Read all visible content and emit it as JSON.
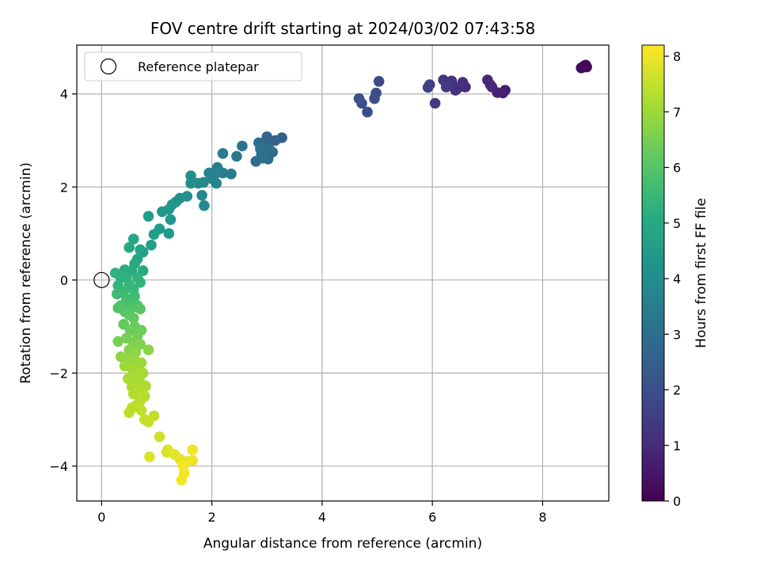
{
  "chart_data": {
    "type": "scatter",
    "title": "FOV centre drift starting at 2024/03/02 07:43:58",
    "xlabel": "Angular distance from reference (arcmin)",
    "ylabel": "Rotation from reference (arcmin)",
    "xlim": [
      -0.45,
      9.2
    ],
    "ylim": [
      -4.75,
      5.05
    ],
    "xticks": [
      0,
      2,
      4,
      6,
      8
    ],
    "yticks": [
      -4,
      -2,
      0,
      2,
      4
    ],
    "xtick_labels": [
      "0",
      "2",
      "4",
      "6",
      "8"
    ],
    "ytick_labels": [
      "−4",
      "−2",
      "0",
      "2",
      "4"
    ],
    "grid": true,
    "legend": {
      "placement": "upper-left",
      "label": "Reference platepar"
    },
    "reference_point": {
      "x": 0,
      "y": 0
    },
    "colorbar": {
      "label": "Hours from first FF file",
      "min": 0,
      "max": 8.2,
      "ticks": [
        0,
        1,
        2,
        3,
        4,
        5,
        6,
        7,
        8
      ],
      "tick_labels": [
        "0",
        "1",
        "2",
        "3",
        "4",
        "5",
        "6",
        "7",
        "8"
      ],
      "colormap": "viridis"
    },
    "points": [
      {
        "x": 8.72,
        "y": 4.57,
        "h": 0.05
      },
      {
        "x": 8.78,
        "y": 4.62,
        "h": 0.1
      },
      {
        "x": 8.8,
        "y": 4.58,
        "h": 0.12
      },
      {
        "x": 8.75,
        "y": 4.6,
        "h": 0.15
      },
      {
        "x": 8.7,
        "y": 4.56,
        "h": 0.2
      },
      {
        "x": 7.32,
        "y": 4.08,
        "h": 0.7
      },
      {
        "x": 7.28,
        "y": 4.02,
        "h": 0.75
      },
      {
        "x": 7.18,
        "y": 4.03,
        "h": 0.8
      },
      {
        "x": 7.08,
        "y": 4.15,
        "h": 0.85
      },
      {
        "x": 7.0,
        "y": 4.3,
        "h": 0.9
      },
      {
        "x": 7.05,
        "y": 4.2,
        "h": 0.95
      },
      {
        "x": 6.6,
        "y": 4.15,
        "h": 1.05
      },
      {
        "x": 6.55,
        "y": 4.25,
        "h": 1.1
      },
      {
        "x": 6.48,
        "y": 4.14,
        "h": 1.15
      },
      {
        "x": 6.42,
        "y": 4.08,
        "h": 1.2
      },
      {
        "x": 6.35,
        "y": 4.28,
        "h": 1.25
      },
      {
        "x": 6.3,
        "y": 4.2,
        "h": 1.3
      },
      {
        "x": 6.2,
        "y": 4.3,
        "h": 1.35
      },
      {
        "x": 6.25,
        "y": 4.15,
        "h": 1.4
      },
      {
        "x": 6.05,
        "y": 3.8,
        "h": 1.45
      },
      {
        "x": 5.95,
        "y": 4.2,
        "h": 1.5
      },
      {
        "x": 5.92,
        "y": 4.14,
        "h": 1.55
      },
      {
        "x": 5.03,
        "y": 4.27,
        "h": 1.8
      },
      {
        "x": 4.98,
        "y": 4.02,
        "h": 1.85
      },
      {
        "x": 4.95,
        "y": 3.9,
        "h": 1.9
      },
      {
        "x": 4.82,
        "y": 3.61,
        "h": 1.95
      },
      {
        "x": 4.72,
        "y": 3.8,
        "h": 2.0
      },
      {
        "x": 4.67,
        "y": 3.9,
        "h": 2.05
      },
      {
        "x": 3.27,
        "y": 3.06,
        "h": 2.5
      },
      {
        "x": 3.15,
        "y": 3.0,
        "h": 2.55
      },
      {
        "x": 3.05,
        "y": 2.98,
        "h": 2.6
      },
      {
        "x": 3.0,
        "y": 3.08,
        "h": 2.65
      },
      {
        "x": 2.95,
        "y": 2.9,
        "h": 2.7
      },
      {
        "x": 3.1,
        "y": 2.75,
        "h": 2.75
      },
      {
        "x": 3.02,
        "y": 2.6,
        "h": 2.8
      },
      {
        "x": 2.9,
        "y": 2.7,
        "h": 2.85
      },
      {
        "x": 2.85,
        "y": 2.95,
        "h": 2.9
      },
      {
        "x": 2.8,
        "y": 2.55,
        "h": 2.95
      },
      {
        "x": 2.92,
        "y": 2.62,
        "h": 3.0
      },
      {
        "x": 3.05,
        "y": 2.8,
        "h": 3.05
      },
      {
        "x": 2.88,
        "y": 2.82,
        "h": 3.1
      },
      {
        "x": 2.55,
        "y": 2.88,
        "h": 3.2
      },
      {
        "x": 2.45,
        "y": 2.66,
        "h": 3.3
      },
      {
        "x": 2.2,
        "y": 2.72,
        "h": 3.4
      },
      {
        "x": 2.35,
        "y": 2.28,
        "h": 3.45
      },
      {
        "x": 2.2,
        "y": 2.3,
        "h": 3.5
      },
      {
        "x": 2.1,
        "y": 2.42,
        "h": 3.55
      },
      {
        "x": 2.08,
        "y": 2.3,
        "h": 3.6
      },
      {
        "x": 1.95,
        "y": 2.3,
        "h": 3.65
      },
      {
        "x": 2.0,
        "y": 2.18,
        "h": 3.7
      },
      {
        "x": 2.08,
        "y": 2.08,
        "h": 3.75
      },
      {
        "x": 1.85,
        "y": 2.1,
        "h": 3.8
      },
      {
        "x": 1.82,
        "y": 1.82,
        "h": 3.85
      },
      {
        "x": 1.86,
        "y": 1.6,
        "h": 3.9
      },
      {
        "x": 1.75,
        "y": 2.08,
        "h": 3.95
      },
      {
        "x": 1.62,
        "y": 2.08,
        "h": 4.0
      },
      {
        "x": 1.62,
        "y": 2.24,
        "h": 4.05
      },
      {
        "x": 1.55,
        "y": 1.8,
        "h": 4.1
      },
      {
        "x": 1.42,
        "y": 1.76,
        "h": 4.15
      },
      {
        "x": 1.35,
        "y": 1.68,
        "h": 4.2
      },
      {
        "x": 1.28,
        "y": 1.62,
        "h": 4.25
      },
      {
        "x": 1.22,
        "y": 1.52,
        "h": 4.3
      },
      {
        "x": 1.1,
        "y": 1.47,
        "h": 4.35
      },
      {
        "x": 1.25,
        "y": 1.3,
        "h": 4.4
      },
      {
        "x": 1.22,
        "y": 1.0,
        "h": 4.45
      },
      {
        "x": 1.05,
        "y": 1.1,
        "h": 4.5
      },
      {
        "x": 0.95,
        "y": 0.98,
        "h": 4.55
      },
      {
        "x": 0.85,
        "y": 1.37,
        "h": 4.6
      },
      {
        "x": 0.9,
        "y": 0.75,
        "h": 4.65
      },
      {
        "x": 0.75,
        "y": 0.6,
        "h": 4.7
      },
      {
        "x": 0.7,
        "y": 0.65,
        "h": 4.75
      },
      {
        "x": 0.65,
        "y": 0.45,
        "h": 4.8
      },
      {
        "x": 0.58,
        "y": 0.88,
        "h": 4.85
      },
      {
        "x": 0.5,
        "y": 0.7,
        "h": 4.9
      },
      {
        "x": 0.6,
        "y": 0.35,
        "h": 4.95
      },
      {
        "x": 0.75,
        "y": 0.2,
        "h": 5.0
      },
      {
        "x": 0.55,
        "y": 0.2,
        "h": 5.05
      },
      {
        "x": 0.42,
        "y": 0.22,
        "h": 5.1
      },
      {
        "x": 0.35,
        "y": 0.05,
        "h": 5.15
      },
      {
        "x": 0.25,
        "y": 0.15,
        "h": 5.2
      },
      {
        "x": 0.45,
        "y": 0.05,
        "h": 5.25
      },
      {
        "x": 0.65,
        "y": 0.05,
        "h": 5.3
      },
      {
        "x": 0.7,
        "y": -0.05,
        "h": 5.35
      },
      {
        "x": 0.3,
        "y": -0.12,
        "h": 5.4
      },
      {
        "x": 0.5,
        "y": -0.1,
        "h": 5.45
      },
      {
        "x": 0.58,
        "y": -0.2,
        "h": 5.5
      },
      {
        "x": 0.4,
        "y": -0.25,
        "h": 5.55
      },
      {
        "x": 0.28,
        "y": -0.3,
        "h": 5.6
      },
      {
        "x": 0.6,
        "y": -0.35,
        "h": 5.65
      },
      {
        "x": 0.45,
        "y": -0.4,
        "h": 5.7
      },
      {
        "x": 0.5,
        "y": -0.5,
        "h": 5.75
      },
      {
        "x": 0.35,
        "y": -0.55,
        "h": 5.8
      },
      {
        "x": 0.65,
        "y": -0.55,
        "h": 5.85
      },
      {
        "x": 0.55,
        "y": -0.6,
        "h": 5.9
      },
      {
        "x": 0.3,
        "y": -0.6,
        "h": 5.95
      },
      {
        "x": 0.42,
        "y": -0.68,
        "h": 6.0
      },
      {
        "x": 0.7,
        "y": -0.62,
        "h": 6.05
      },
      {
        "x": 0.5,
        "y": -0.75,
        "h": 6.1
      },
      {
        "x": 0.58,
        "y": -0.82,
        "h": 6.15
      },
      {
        "x": 0.4,
        "y": -0.95,
        "h": 6.2
      },
      {
        "x": 0.6,
        "y": -1.0,
        "h": 6.25
      },
      {
        "x": 0.52,
        "y": -1.08,
        "h": 6.3
      },
      {
        "x": 0.72,
        "y": -1.08,
        "h": 6.35
      },
      {
        "x": 0.65,
        "y": -1.2,
        "h": 6.4
      },
      {
        "x": 0.45,
        "y": -1.25,
        "h": 6.45
      },
      {
        "x": 0.3,
        "y": -1.32,
        "h": 6.5
      },
      {
        "x": 0.58,
        "y": -1.35,
        "h": 6.55
      },
      {
        "x": 0.7,
        "y": -1.38,
        "h": 6.6
      },
      {
        "x": 0.5,
        "y": -1.5,
        "h": 6.65
      },
      {
        "x": 0.85,
        "y": -1.5,
        "h": 6.7
      },
      {
        "x": 0.62,
        "y": -1.55,
        "h": 6.75
      },
      {
        "x": 0.35,
        "y": -1.65,
        "h": 6.8
      },
      {
        "x": 0.48,
        "y": -1.7,
        "h": 6.85
      },
      {
        "x": 0.6,
        "y": -1.72,
        "h": 6.9
      },
      {
        "x": 0.72,
        "y": -1.78,
        "h": 6.95
      },
      {
        "x": 0.42,
        "y": -1.85,
        "h": 7.0
      },
      {
        "x": 0.55,
        "y": -1.9,
        "h": 7.02
      },
      {
        "x": 0.65,
        "y": -1.95,
        "h": 7.05
      },
      {
        "x": 0.75,
        "y": -2.0,
        "h": 7.08
      },
      {
        "x": 0.6,
        "y": -2.1,
        "h": 7.1
      },
      {
        "x": 0.48,
        "y": -2.12,
        "h": 7.12
      },
      {
        "x": 0.7,
        "y": -2.2,
        "h": 7.15
      },
      {
        "x": 0.8,
        "y": -2.28,
        "h": 7.18
      },
      {
        "x": 0.55,
        "y": -2.3,
        "h": 7.2
      },
      {
        "x": 0.68,
        "y": -2.35,
        "h": 7.22
      },
      {
        "x": 0.58,
        "y": -2.45,
        "h": 7.25
      },
      {
        "x": 0.78,
        "y": -2.5,
        "h": 7.28
      },
      {
        "x": 0.7,
        "y": -2.6,
        "h": 7.3
      },
      {
        "x": 0.62,
        "y": -2.7,
        "h": 7.32
      },
      {
        "x": 0.55,
        "y": -2.75,
        "h": 7.35
      },
      {
        "x": 0.5,
        "y": -2.85,
        "h": 7.38
      },
      {
        "x": 0.72,
        "y": -2.8,
        "h": 7.4
      },
      {
        "x": 0.95,
        "y": -2.92,
        "h": 7.45
      },
      {
        "x": 0.78,
        "y": -3.0,
        "h": 7.48
      },
      {
        "x": 0.85,
        "y": -3.05,
        "h": 7.5
      },
      {
        "x": 1.05,
        "y": -3.37,
        "h": 7.6
      },
      {
        "x": 1.18,
        "y": -3.7,
        "h": 7.7
      },
      {
        "x": 1.2,
        "y": -3.65,
        "h": 7.75
      },
      {
        "x": 0.87,
        "y": -3.8,
        "h": 7.8
      },
      {
        "x": 1.32,
        "y": -3.75,
        "h": 7.85
      },
      {
        "x": 1.42,
        "y": -3.85,
        "h": 7.9
      },
      {
        "x": 1.55,
        "y": -3.9,
        "h": 7.95
      },
      {
        "x": 1.65,
        "y": -3.88,
        "h": 8.0
      },
      {
        "x": 1.65,
        "y": -3.65,
        "h": 8.02
      },
      {
        "x": 1.5,
        "y": -4.15,
        "h": 8.05
      },
      {
        "x": 1.45,
        "y": -4.3,
        "h": 8.08
      },
      {
        "x": 1.48,
        "y": -4.0,
        "h": 8.1
      }
    ]
  }
}
